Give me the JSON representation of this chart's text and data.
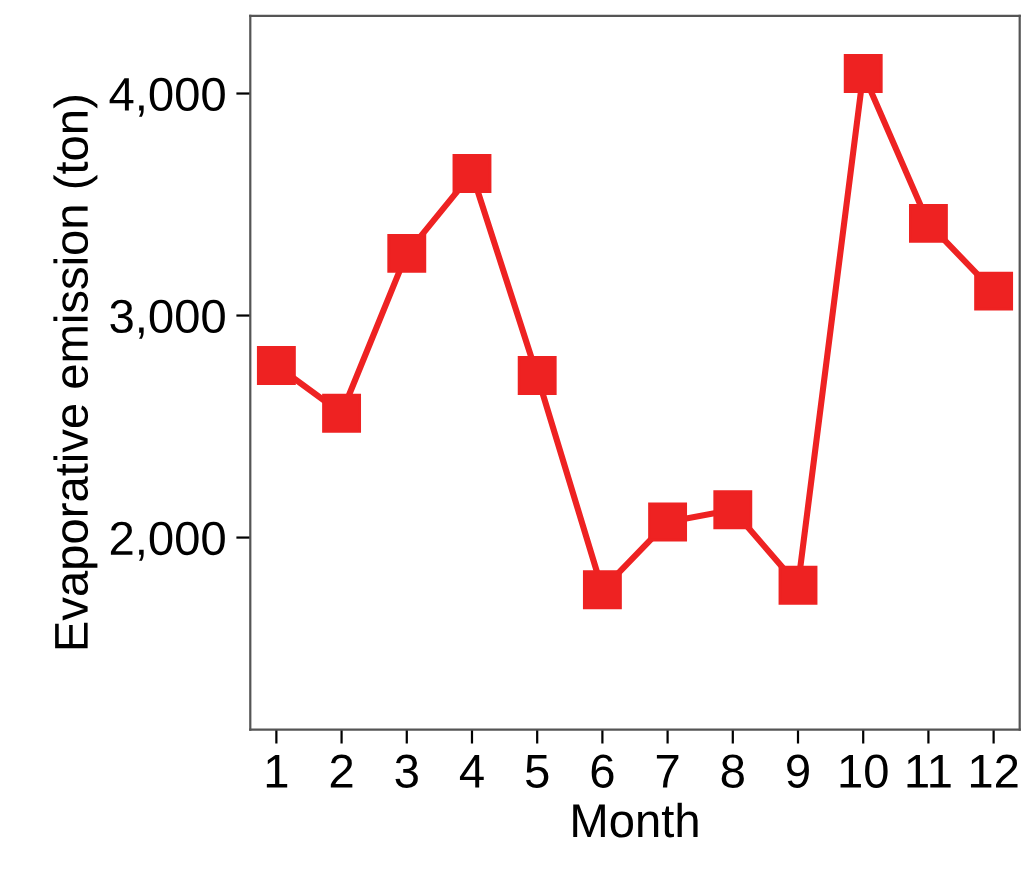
{
  "chart_data": {
    "type": "line",
    "xlabel": "Month",
    "ylabel": "Evaporative emission (ton)",
    "x": [
      1,
      2,
      3,
      4,
      5,
      6,
      7,
      8,
      9,
      10,
      11,
      12
    ],
    "series": [
      {
        "color": "#ee2222",
        "values": [
          2775,
          2560,
          3280,
          3640,
          2730,
          1765,
          2070,
          2125,
          1785,
          4090,
          3415,
          3110
        ]
      }
    ],
    "xlim": [
      0.6,
      12.4
    ],
    "xticks": [
      1,
      2,
      3,
      4,
      5,
      6,
      7,
      8,
      9,
      10,
      11,
      12
    ],
    "ylim": [
      1135,
      4350
    ],
    "yticks": [
      {
        "value": 2000,
        "label": "2,000"
      },
      {
        "value": 3000,
        "label": "3,000"
      },
      {
        "value": 4000,
        "label": "4,000"
      }
    ],
    "marker": "square",
    "line_style": "solid",
    "grid": false,
    "legend": false
  }
}
